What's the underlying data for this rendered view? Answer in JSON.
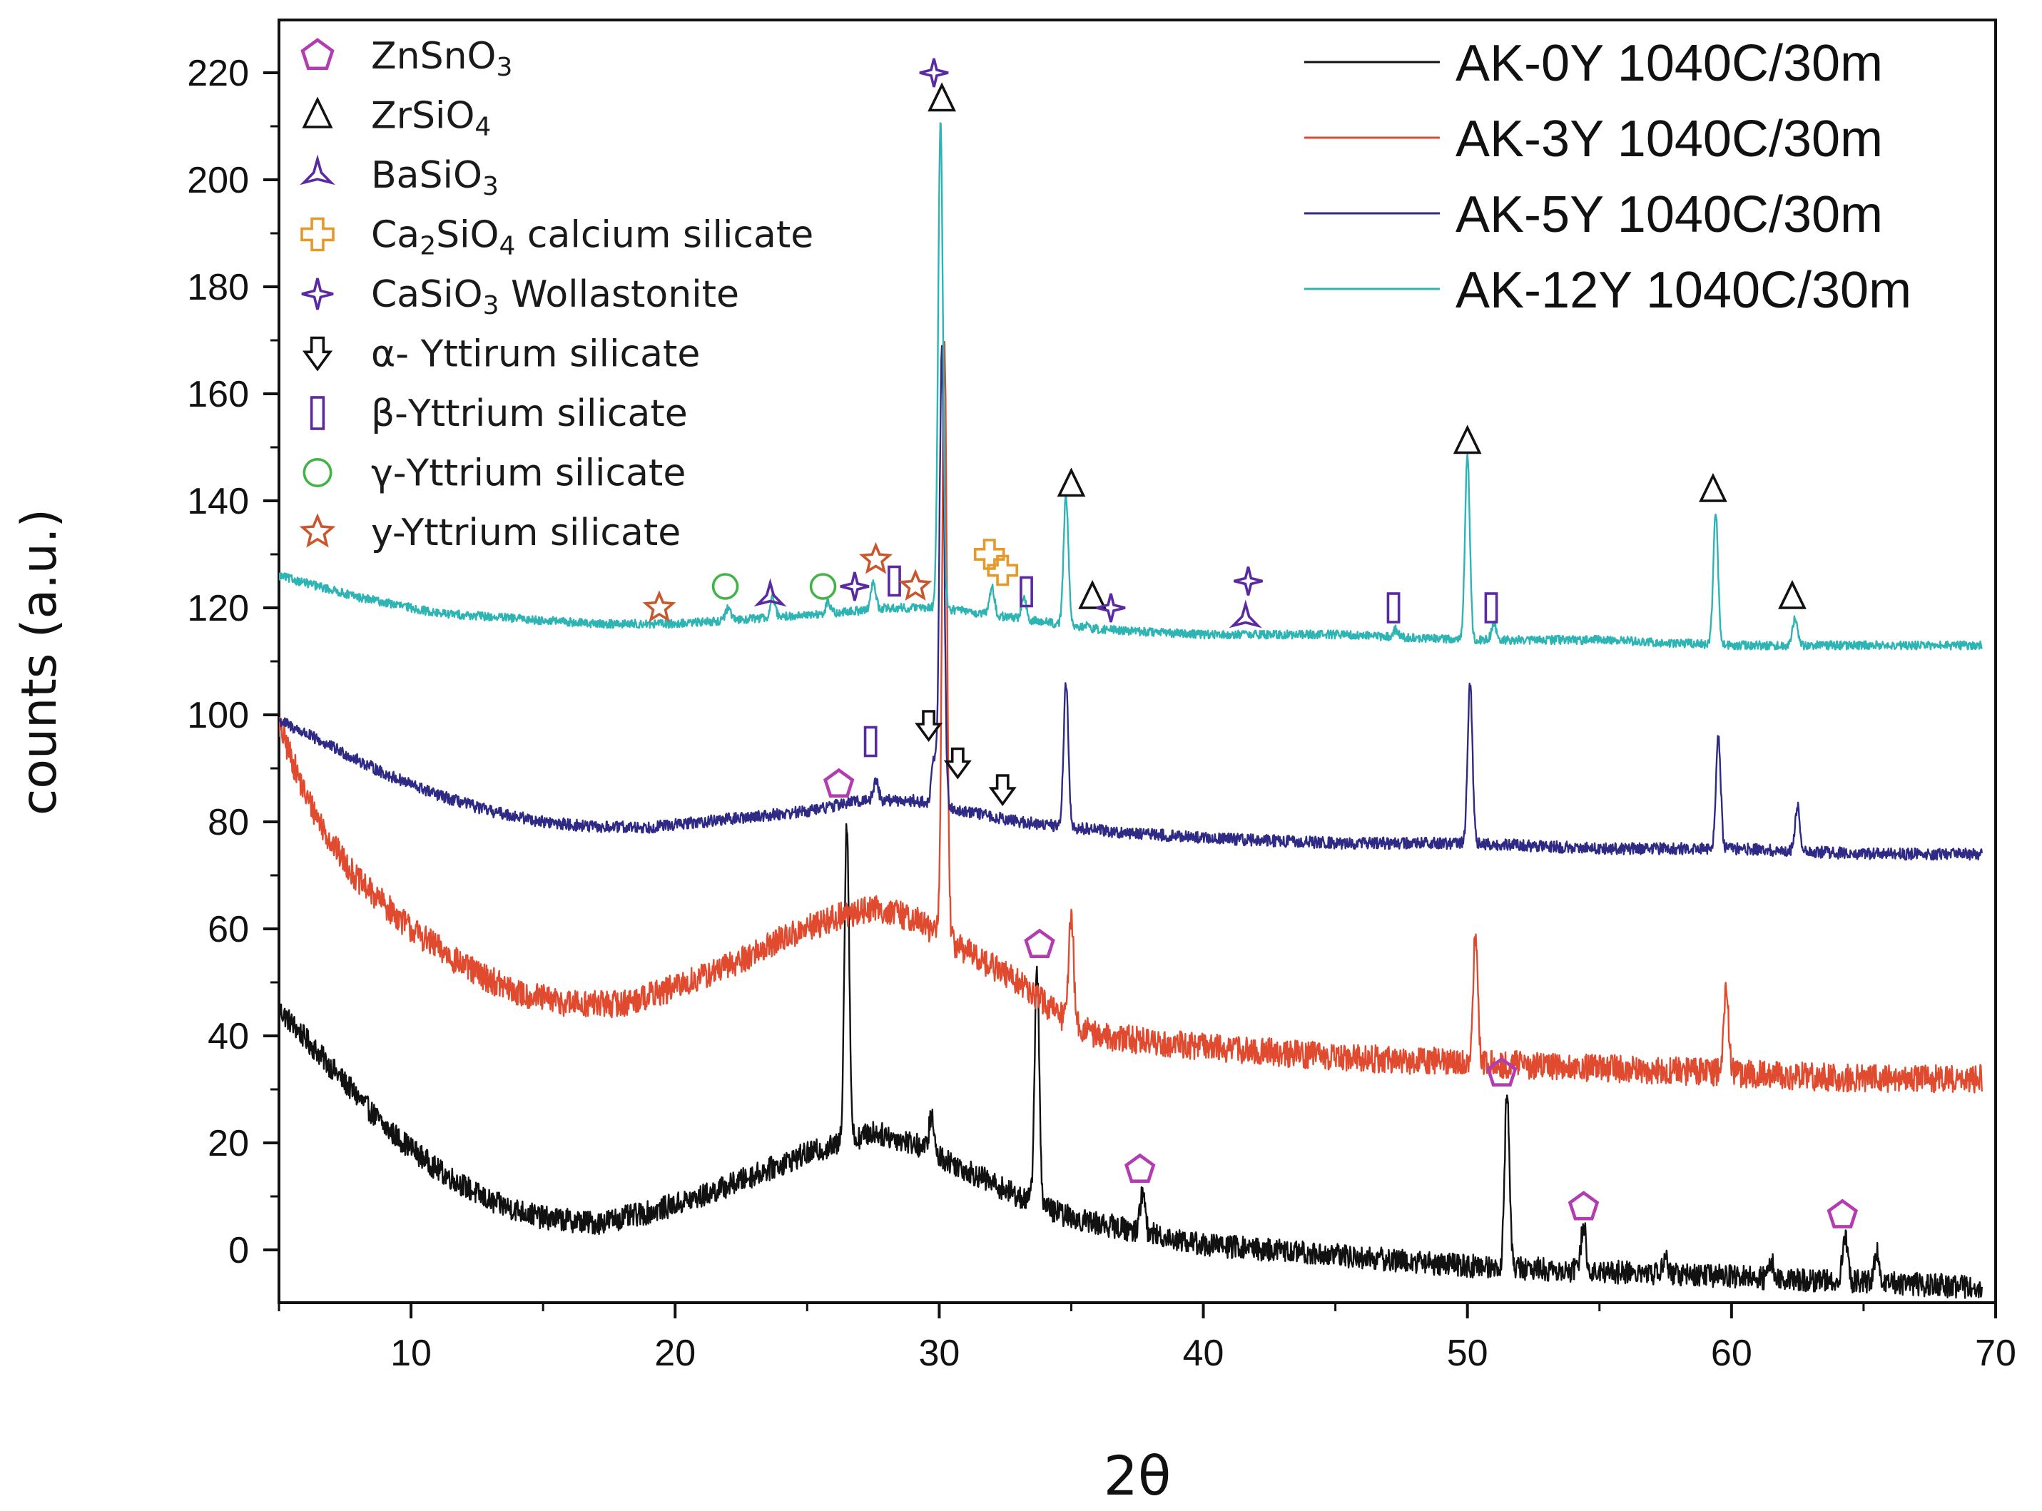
{
  "chart_data": {
    "type": "line",
    "title": "",
    "xlabel": "2θ",
    "ylabel": "counts (a.u.)",
    "xlim": [
      5,
      70
    ],
    "ylim": [
      -10,
      230
    ],
    "x_ticks": [
      10,
      20,
      30,
      40,
      50,
      60,
      70
    ],
    "y_ticks": [
      0,
      20,
      40,
      60,
      80,
      100,
      120,
      140,
      160,
      180,
      200,
      220
    ],
    "grid": false,
    "legend_position": "top-right",
    "series": [
      {
        "name": "AK-0Y 1040C/30m",
        "color": "#111111",
        "baseline": [
          [
            5,
            45
          ],
          [
            7,
            34
          ],
          [
            9,
            23
          ],
          [
            11,
            15
          ],
          [
            13,
            9
          ],
          [
            15,
            6
          ],
          [
            17,
            5
          ],
          [
            19,
            7
          ],
          [
            21,
            10
          ],
          [
            23,
            14
          ],
          [
            25,
            18
          ],
          [
            26.4,
            20
          ],
          [
            27.5,
            22
          ],
          [
            29,
            20
          ],
          [
            31,
            15
          ],
          [
            33,
            10
          ],
          [
            35,
            6
          ],
          [
            37,
            4
          ],
          [
            40,
            1
          ],
          [
            45,
            -1
          ],
          [
            50,
            -3
          ],
          [
            55,
            -4
          ],
          [
            60,
            -5
          ],
          [
            65,
            -6
          ],
          [
            69.5,
            -7
          ]
        ],
        "peaks": [
          [
            26.5,
            80
          ],
          [
            29.7,
            25
          ],
          [
            33.7,
            52
          ],
          [
            37.7,
            11
          ],
          [
            51.5,
            30
          ],
          [
            54.4,
            5
          ],
          [
            57.5,
            -1
          ],
          [
            61.5,
            -2
          ],
          [
            64.3,
            3
          ],
          [
            65.5,
            0
          ]
        ],
        "noise": 2.2
      },
      {
        "name": "AK-3Y 1040C/30m",
        "color": "#e04a2e",
        "baseline": [
          [
            5,
            98
          ],
          [
            6,
            85
          ],
          [
            7,
            76
          ],
          [
            8,
            69
          ],
          [
            10,
            60
          ],
          [
            12,
            53
          ],
          [
            14,
            48
          ],
          [
            16,
            46
          ],
          [
            18,
            46
          ],
          [
            20,
            49
          ],
          [
            22,
            53
          ],
          [
            24,
            58
          ],
          [
            26,
            62
          ],
          [
            27.5,
            64
          ],
          [
            29,
            62
          ],
          [
            31,
            56
          ],
          [
            33,
            50
          ],
          [
            34.5,
            44
          ],
          [
            36,
            40
          ],
          [
            40,
            38
          ],
          [
            45,
            36
          ],
          [
            50,
            35
          ],
          [
            55,
            34
          ],
          [
            60,
            33
          ],
          [
            65,
            32
          ],
          [
            69.5,
            32
          ]
        ],
        "peaks": [
          [
            30.2,
            170
          ],
          [
            35.0,
            63
          ],
          [
            50.3,
            58
          ],
          [
            59.8,
            49
          ]
        ],
        "noise": 2.6
      },
      {
        "name": "AK-5Y 1040C/30m",
        "color": "#2e2a85",
        "baseline": [
          [
            5,
            99
          ],
          [
            7,
            94
          ],
          [
            9,
            89
          ],
          [
            11,
            85
          ],
          [
            13,
            82
          ],
          [
            15,
            80
          ],
          [
            17,
            79
          ],
          [
            19,
            79
          ],
          [
            21,
            80
          ],
          [
            23,
            81
          ],
          [
            25,
            82
          ],
          [
            27,
            84
          ],
          [
            29,
            84
          ],
          [
            31,
            82
          ],
          [
            33,
            80
          ],
          [
            35,
            79
          ],
          [
            37,
            78
          ],
          [
            40,
            77
          ],
          [
            45,
            76
          ],
          [
            50,
            76
          ],
          [
            55,
            75
          ],
          [
            60,
            75
          ],
          [
            65,
            74
          ],
          [
            69.5,
            74
          ]
        ],
        "peaks": [
          [
            27.6,
            88
          ],
          [
            29.8,
            92
          ],
          [
            30.1,
            168
          ],
          [
            34.8,
            106
          ],
          [
            50.1,
            106
          ],
          [
            59.5,
            96
          ],
          [
            62.5,
            83
          ]
        ],
        "noise": 1.1
      },
      {
        "name": "AK-12Y 1040C/30m",
        "color": "#2fb4b4",
        "baseline": [
          [
            5,
            126
          ],
          [
            8,
            122
          ],
          [
            11,
            119
          ],
          [
            14,
            118
          ],
          [
            17,
            117
          ],
          [
            20,
            117
          ],
          [
            23,
            118
          ],
          [
            26,
            119
          ],
          [
            28,
            120
          ],
          [
            30,
            120
          ],
          [
            33,
            118
          ],
          [
            36,
            116
          ],
          [
            40,
            115
          ],
          [
            45,
            115
          ],
          [
            50,
            114
          ],
          [
            55,
            114
          ],
          [
            60,
            113
          ],
          [
            65,
            113
          ],
          [
            69.5,
            113
          ]
        ],
        "peaks": [
          [
            22.0,
            120
          ],
          [
            23.7,
            122
          ],
          [
            25.8,
            121
          ],
          [
            27.5,
            125
          ],
          [
            30.05,
            211
          ],
          [
            32.0,
            124
          ],
          [
            33.2,
            122
          ],
          [
            34.8,
            141
          ],
          [
            35.6,
            117
          ],
          [
            47.3,
            116
          ],
          [
            50.0,
            149
          ],
          [
            51.0,
            117
          ],
          [
            59.4,
            138
          ],
          [
            62.4,
            118
          ]
        ],
        "noise": 0.8
      }
    ],
    "phase_legend": [
      {
        "symbol": "pentagon-icon",
        "color": "#b23cb0",
        "label_parts": [
          [
            "ZnSnO",
            "n"
          ],
          [
            "3",
            "s"
          ]
        ]
      },
      {
        "symbol": "open-triangle-icon",
        "color": "#111111",
        "label_parts": [
          [
            "ZrSiO",
            "n"
          ],
          [
            "4",
            "s"
          ]
        ]
      },
      {
        "symbol": "tri-star-icon",
        "color": "#5a2aa0",
        "label_parts": [
          [
            "BaSiO",
            "n"
          ],
          [
            "3",
            "s"
          ]
        ]
      },
      {
        "symbol": "cross-icon",
        "color": "#e39a2a",
        "label_parts": [
          [
            "Ca",
            "n"
          ],
          [
            "2",
            "s"
          ],
          [
            "SiO",
            "n"
          ],
          [
            "4",
            "s"
          ],
          [
            " calcium silicate",
            "n"
          ]
        ]
      },
      {
        "symbol": "four-point-star-icon",
        "color": "#5a2aa0",
        "label_parts": [
          [
            "CaSiO",
            "n"
          ],
          [
            "3",
            "s"
          ],
          [
            " Wollastonite",
            "n"
          ]
        ]
      },
      {
        "symbol": "down-arrow-icon",
        "color": "#111111",
        "label_parts": [
          [
            "α- Yttirum silicate",
            "n"
          ]
        ]
      },
      {
        "symbol": "rectangle-icon",
        "color": "#5a2aa0",
        "label_parts": [
          [
            "β-Yttrium silicate",
            "n"
          ]
        ]
      },
      {
        "symbol": "circle-icon",
        "color": "#44b347",
        "label_parts": [
          [
            "γ-Yttrium silicate",
            "n"
          ]
        ]
      },
      {
        "symbol": "star-icon",
        "color": "#c9572d",
        "label_parts": [
          [
            "y-Yttrium silicate",
            "n"
          ]
        ]
      }
    ],
    "annotations": [
      {
        "symbol": "pentagon-icon",
        "x": 26.2,
        "y": 87
      },
      {
        "symbol": "pentagon-icon",
        "x": 33.8,
        "y": 57
      },
      {
        "symbol": "pentagon-icon",
        "x": 37.6,
        "y": 15
      },
      {
        "symbol": "pentagon-icon",
        "x": 51.3,
        "y": 33
      },
      {
        "symbol": "pentagon-icon",
        "x": 54.4,
        "y": 8
      },
      {
        "symbol": "pentagon-icon",
        "x": 64.2,
        "y": 6.5
      },
      {
        "symbol": "open-triangle-icon",
        "x": 30.1,
        "y": 215
      },
      {
        "symbol": "open-triangle-icon",
        "x": 35.0,
        "y": 143
      },
      {
        "symbol": "open-triangle-icon",
        "x": 35.8,
        "y": 122
      },
      {
        "symbol": "open-triangle-icon",
        "x": 50.0,
        "y": 151
      },
      {
        "symbol": "open-triangle-icon",
        "x": 59.3,
        "y": 142
      },
      {
        "symbol": "open-triangle-icon",
        "x": 62.3,
        "y": 122
      },
      {
        "symbol": "tri-star-icon",
        "x": 23.6,
        "y": 122
      },
      {
        "symbol": "tri-star-icon",
        "x": 41.6,
        "y": 118
      },
      {
        "symbol": "cross-icon",
        "x": 31.9,
        "y": 130
      },
      {
        "symbol": "cross-icon",
        "x": 32.4,
        "y": 127
      },
      {
        "symbol": "four-point-star-icon",
        "x": 29.8,
        "y": 220
      },
      {
        "symbol": "four-point-star-icon",
        "x": 26.8,
        "y": 124
      },
      {
        "symbol": "four-point-star-icon",
        "x": 36.5,
        "y": 120
      },
      {
        "symbol": "four-point-star-icon",
        "x": 41.7,
        "y": 125
      },
      {
        "symbol": "down-arrow-icon",
        "x": 29.6,
        "y": 98
      },
      {
        "symbol": "down-arrow-icon",
        "x": 30.7,
        "y": 91
      },
      {
        "symbol": "down-arrow-icon",
        "x": 32.4,
        "y": 86
      },
      {
        "symbol": "rectangle-icon",
        "x": 27.4,
        "y": 95
      },
      {
        "symbol": "rectangle-icon",
        "x": 28.3,
        "y": 125
      },
      {
        "symbol": "rectangle-icon",
        "x": 33.3,
        "y": 123
      },
      {
        "symbol": "rectangle-icon",
        "x": 47.2,
        "y": 120
      },
      {
        "symbol": "rectangle-icon",
        "x": 50.9,
        "y": 120
      },
      {
        "symbol": "circle-icon",
        "x": 21.9,
        "y": 124
      },
      {
        "symbol": "circle-icon",
        "x": 25.6,
        "y": 124
      },
      {
        "symbol": "star-icon",
        "x": 19.4,
        "y": 120
      },
      {
        "symbol": "star-icon",
        "x": 27.6,
        "y": 129
      },
      {
        "symbol": "star-icon",
        "x": 29.1,
        "y": 124
      }
    ]
  }
}
